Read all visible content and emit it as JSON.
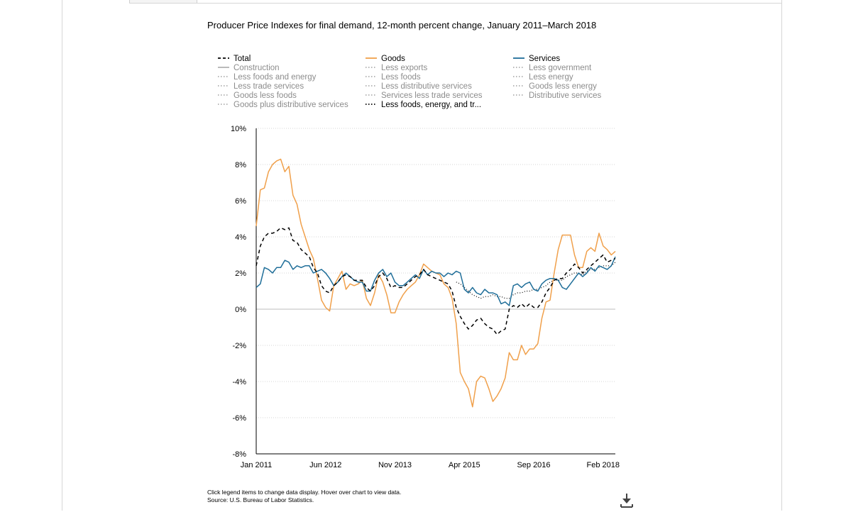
{
  "page": {
    "footnote_line1": "Click legend items to change data display. Hover over chart to view data.",
    "footnote_line2": "Source: U.S. Bureau of Labor Statistics."
  },
  "legend": [
    {
      "label": "Total",
      "color": "#000000",
      "style": "dashed",
      "active": true,
      "col": 0,
      "row": 0
    },
    {
      "label": "Construction",
      "color": "#8c8c8c",
      "style": "solid",
      "active": false,
      "col": 0,
      "row": 1
    },
    {
      "label": "Less foods and energy",
      "color": "#8c8c8c",
      "style": "dotted",
      "active": false,
      "col": 0,
      "row": 2
    },
    {
      "label": "Less trade services",
      "color": "#8c8c8c",
      "style": "dotted",
      "active": false,
      "col": 0,
      "row": 3
    },
    {
      "label": "Goods less foods",
      "color": "#8c8c8c",
      "style": "dotted",
      "active": false,
      "col": 0,
      "row": 4
    },
    {
      "label": "Goods plus distributive services",
      "color": "#8c8c8c",
      "style": "dotted",
      "active": false,
      "col": 0,
      "row": 5
    },
    {
      "label": "Goods",
      "color": "#f0a04b",
      "style": "solid",
      "active": true,
      "col": 1,
      "row": 0
    },
    {
      "label": "Less exports",
      "color": "#8c8c8c",
      "style": "dotted",
      "active": false,
      "col": 1,
      "row": 1
    },
    {
      "label": "Less foods",
      "color": "#8c8c8c",
      "style": "dotted",
      "active": false,
      "col": 1,
      "row": 2
    },
    {
      "label": "Less distributive services",
      "color": "#8c8c8c",
      "style": "dotted",
      "active": false,
      "col": 1,
      "row": 3
    },
    {
      "label": "Services less trade services",
      "color": "#8c8c8c",
      "style": "dotted",
      "active": false,
      "col": 1,
      "row": 4
    },
    {
      "label": "Less foods, energy, and tr...",
      "color": "#000000",
      "style": "dotted",
      "active": true,
      "col": 1,
      "row": 5
    },
    {
      "label": "Services",
      "color": "#1f6e99",
      "style": "solid",
      "active": true,
      "col": 2,
      "row": 0
    },
    {
      "label": "Less government",
      "color": "#8c8c8c",
      "style": "dotted",
      "active": false,
      "col": 2,
      "row": 1
    },
    {
      "label": "Less energy",
      "color": "#8c8c8c",
      "style": "dotted",
      "active": false,
      "col": 2,
      "row": 2
    },
    {
      "label": "Goods less energy",
      "color": "#8c8c8c",
      "style": "dotted",
      "active": false,
      "col": 2,
      "row": 3
    },
    {
      "label": "Distributive services",
      "color": "#8c8c8c",
      "style": "dotted",
      "active": false,
      "col": 2,
      "row": 4
    }
  ],
  "chart_data": {
    "type": "line",
    "title": "Producer Price Indexes for final demand, 12-month percent change, January 2011–March 2018",
    "xlabel": "",
    "ylabel": "",
    "x_start": "Jan 2011",
    "x_end": "Mar 2018",
    "x_tick_labels": [
      "Jan 2011",
      "Jun 2012",
      "Nov 2013",
      "Apr 2015",
      "Sep 2016",
      "Feb 2018"
    ],
    "y_ticks": [
      -8,
      -6,
      -4,
      -2,
      0,
      2,
      4,
      6,
      8,
      10
    ],
    "y_tick_labels": [
      "-8%",
      "-6%",
      "-4%",
      "-2%",
      "0%",
      "2%",
      "4%",
      "6%",
      "8%",
      "10%"
    ],
    "ylim": [
      -8,
      10
    ],
    "grid": "horizontal dotted",
    "legend_position": "top",
    "series": [
      {
        "name": "Goods",
        "color": "#f0a04b",
        "style": "solid",
        "values": [
          4.6,
          6.6,
          6.7,
          7.6,
          8.0,
          8.2,
          8.3,
          7.6,
          7.9,
          6.3,
          5.8,
          4.7,
          4.0,
          3.3,
          2.8,
          1.7,
          0.5,
          0.1,
          -0.1,
          1.3,
          1.7,
          2.1,
          1.1,
          1.4,
          1.3,
          1.4,
          1.6,
          0.6,
          0.2,
          0.9,
          1.9,
          1.5,
          0.8,
          -0.2,
          -0.2,
          0.4,
          0.8,
          1.1,
          1.3,
          1.5,
          1.9,
          2.5,
          2.3,
          2.1,
          2.0,
          1.9,
          1.4,
          1.2,
          0.6,
          -0.8,
          -3.5,
          -4.0,
          -4.4,
          -5.4,
          -4.0,
          -3.7,
          -3.8,
          -4.4,
          -5.1,
          -4.8,
          -4.4,
          -3.8,
          -2.4,
          -2.8,
          -2.8,
          -2.0,
          -2.5,
          -2.2,
          -2.2,
          -1.9,
          -0.5,
          0.4,
          0.5,
          2.0,
          3.3,
          4.1,
          4.1,
          4.1,
          3.0,
          2.3,
          2.3,
          3.2,
          3.4,
          3.2,
          4.2,
          3.5,
          3.3,
          3.0,
          3.2
        ]
      },
      {
        "name": "Services",
        "color": "#1f6e99",
        "style": "solid",
        "values": [
          1.2,
          1.4,
          2.3,
          2.2,
          2.0,
          2.3,
          2.3,
          2.7,
          2.6,
          2.2,
          2.4,
          2.3,
          2.4,
          2.4,
          2.0,
          2.1,
          2.2,
          2.0,
          1.7,
          1.3,
          1.5,
          1.8,
          2.0,
          1.8,
          1.6,
          1.5,
          1.5,
          1.0,
          1.0,
          1.6,
          2.0,
          2.2,
          1.8,
          2.0,
          1.5,
          1.3,
          1.3,
          1.5,
          1.7,
          1.9,
          1.7,
          2.2,
          1.9,
          2.1,
          2.0,
          2.0,
          1.8,
          2.0,
          1.9,
          2.1,
          2.0,
          1.1,
          0.9,
          1.2,
          0.9,
          0.8,
          1.1,
          0.9,
          0.9,
          0.8,
          0.3,
          0.4,
          0.2,
          1.3,
          1.4,
          1.2,
          1.4,
          1.5,
          1.1,
          1.0,
          1.4,
          1.6,
          1.7,
          1.7,
          1.6,
          1.2,
          1.1,
          1.4,
          1.7,
          2.0,
          1.8,
          2.0,
          2.3,
          2.1,
          2.4,
          2.3,
          2.2,
          2.4,
          2.9
        ]
      },
      {
        "name": "Total",
        "color": "#000000",
        "style": "dashed",
        "values": [
          2.4,
          3.5,
          4.0,
          4.2,
          4.2,
          4.3,
          4.5,
          4.4,
          4.5,
          3.8,
          3.7,
          3.3,
          3.1,
          2.9,
          2.3,
          2.0,
          1.3,
          1.0,
          0.9,
          1.3,
          1.5,
          1.8,
          1.9,
          1.8,
          1.6,
          1.6,
          1.6,
          1.2,
          1.0,
          1.3,
          1.8,
          2.0,
          1.7,
          1.2,
          1.3,
          1.2,
          1.2,
          1.4,
          1.6,
          1.8,
          1.9,
          2.2,
          1.9,
          1.8,
          1.7,
          1.6,
          1.5,
          1.4,
          1.0,
          0.1,
          -0.4,
          -0.8,
          -1.1,
          -0.9,
          -0.6,
          -0.5,
          -0.8,
          -1.0,
          -1.1,
          -1.4,
          -1.2,
          -1.1,
          0.0,
          0.2,
          0.1,
          0.3,
          0.1,
          0.3,
          0.1,
          0.1,
          0.4,
          0.9,
          1.2,
          1.6,
          1.7,
          1.7,
          2.0,
          2.2,
          2.5,
          2.3,
          2.0,
          2.2,
          2.4,
          2.6,
          2.8,
          3.0,
          2.6,
          2.7,
          2.8
        ]
      },
      {
        "name": "Less foods, energy, and tr...",
        "color": "#000000",
        "style": "dotted",
        "values": [
          null,
          null,
          null,
          null,
          null,
          null,
          null,
          null,
          null,
          null,
          null,
          null,
          null,
          null,
          null,
          null,
          null,
          null,
          null,
          null,
          null,
          null,
          null,
          null,
          null,
          null,
          null,
          null,
          null,
          null,
          null,
          null,
          null,
          null,
          null,
          null,
          null,
          null,
          null,
          null,
          null,
          null,
          null,
          null,
          null,
          null,
          null,
          null,
          null,
          1.5,
          1.4,
          1.2,
          1.0,
          0.8,
          0.7,
          0.6,
          0.7,
          0.7,
          0.8,
          0.7,
          0.7,
          0.6,
          0.6,
          0.8,
          0.9,
          0.9,
          1.0,
          1.0,
          1.1,
          1.1,
          1.2,
          1.3,
          1.5,
          1.6,
          1.6,
          1.6,
          1.8,
          1.9,
          2.0,
          2.0,
          1.9,
          2.1,
          2.2,
          2.2,
          2.3,
          2.4,
          2.4,
          2.4,
          2.6
        ]
      }
    ]
  }
}
